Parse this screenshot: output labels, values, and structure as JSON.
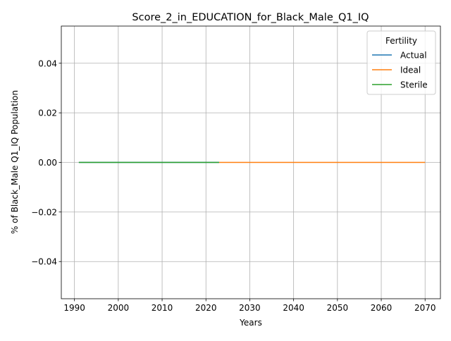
{
  "chart_data": {
    "type": "line",
    "title": "Score_2_in_EDUCATION_for_Black_Male_Q1_IQ",
    "xlabel": "Years",
    "ylabel": "% of Black_Male Q1_IQ Population",
    "xlim": [
      1987,
      2073.5
    ],
    "ylim": [
      -0.055,
      0.055
    ],
    "xticks": [
      1990,
      2000,
      2010,
      2020,
      2030,
      2040,
      2050,
      2060,
      2070
    ],
    "xtick_labels": [
      "1990",
      "2000",
      "2010",
      "2020",
      "2030",
      "2040",
      "2050",
      "2060",
      "2070"
    ],
    "yticks": [
      -0.04,
      -0.02,
      0.0,
      0.02,
      0.04
    ],
    "ytick_labels": [
      "−0.04",
      "−0.02",
      "0.00",
      "0.02",
      "0.04"
    ],
    "grid": true,
    "legend": {
      "title": "Fertility",
      "placement": "top-right"
    },
    "series": [
      {
        "name": "Actual",
        "color": "#1f77b4",
        "x": [
          1991,
          2023
        ],
        "y": [
          0.0,
          0.0
        ]
      },
      {
        "name": "Ideal",
        "color": "#ff7f0e",
        "x": [
          2023,
          2070
        ],
        "y": [
          0.0,
          0.0
        ]
      },
      {
        "name": "Sterile",
        "color": "#2ca02c",
        "x": [
          1991,
          2023
        ],
        "y": [
          0.0,
          0.0
        ]
      }
    ]
  }
}
